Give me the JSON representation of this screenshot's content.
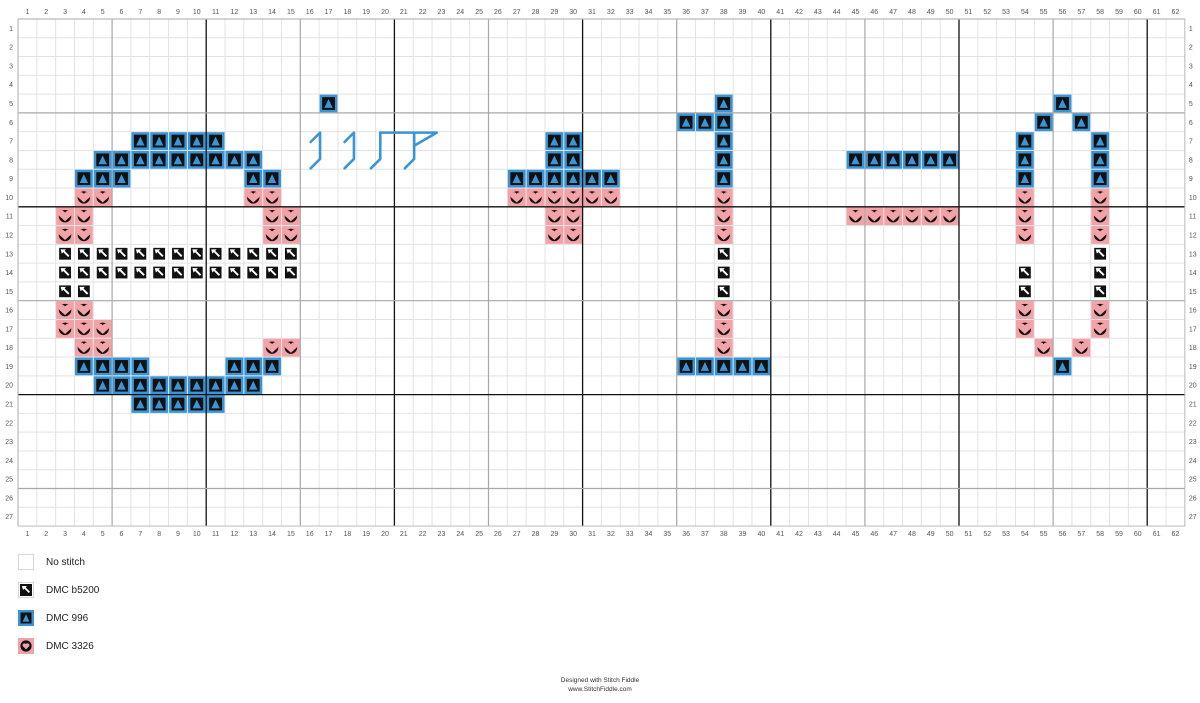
{
  "chart_data": {
    "type": "cross-stitch-pattern",
    "columns": 62,
    "rows": 27,
    "column_numbers_top": true,
    "column_numbers_bottom": true,
    "row_numbers_left": true,
    "row_numbers_right": true,
    "major_gridline_every": 10,
    "symbols": {
      "B": {
        "name": "DMC 996",
        "fill": "#3a95d7",
        "symbol": "triangle"
      },
      "P": {
        "name": "DMC 3326",
        "fill": "#f2a3a8",
        "symbol": "heart"
      },
      "K": {
        "name": "DMC b5200",
        "fill": "#ffffff",
        "symbol": "arrow"
      }
    },
    "stitches": {
      "B": [
        [
          17,
          5
        ],
        [
          38,
          5
        ],
        [
          56,
          5
        ],
        [
          36,
          6
        ],
        [
          37,
          6
        ],
        [
          38,
          6
        ],
        [
          55,
          6
        ],
        [
          57,
          6
        ],
        [
          7,
          7
        ],
        [
          8,
          7
        ],
        [
          9,
          7
        ],
        [
          10,
          7
        ],
        [
          11,
          7
        ],
        [
          29,
          7
        ],
        [
          30,
          7
        ],
        [
          38,
          7
        ],
        [
          54,
          7
        ],
        [
          58,
          7
        ],
        [
          5,
          8
        ],
        [
          6,
          8
        ],
        [
          7,
          8
        ],
        [
          8,
          8
        ],
        [
          9,
          8
        ],
        [
          10,
          8
        ],
        [
          11,
          8
        ],
        [
          12,
          8
        ],
        [
          13,
          8
        ],
        [
          29,
          8
        ],
        [
          30,
          8
        ],
        [
          38,
          8
        ],
        [
          45,
          8
        ],
        [
          46,
          8
        ],
        [
          47,
          8
        ],
        [
          48,
          8
        ],
        [
          49,
          8
        ],
        [
          50,
          8
        ],
        [
          54,
          8
        ],
        [
          58,
          8
        ],
        [
          4,
          9
        ],
        [
          5,
          9
        ],
        [
          6,
          9
        ],
        [
          13,
          9
        ],
        [
          14,
          9
        ],
        [
          27,
          9
        ],
        [
          28,
          9
        ],
        [
          29,
          9
        ],
        [
          30,
          9
        ],
        [
          31,
          9
        ],
        [
          32,
          9
        ],
        [
          38,
          9
        ],
        [
          54,
          9
        ],
        [
          58,
          9
        ],
        [
          4,
          19
        ],
        [
          5,
          19
        ],
        [
          6,
          19
        ],
        [
          7,
          19
        ],
        [
          12,
          19
        ],
        [
          13,
          19
        ],
        [
          14,
          19
        ],
        [
          36,
          19
        ],
        [
          37,
          19
        ],
        [
          38,
          19
        ],
        [
          39,
          19
        ],
        [
          40,
          19
        ],
        [
          56,
          19
        ],
        [
          5,
          20
        ],
        [
          6,
          20
        ],
        [
          7,
          20
        ],
        [
          8,
          20
        ],
        [
          9,
          20
        ],
        [
          10,
          20
        ],
        [
          11,
          20
        ],
        [
          12,
          20
        ],
        [
          13,
          20
        ],
        [
          7,
          21
        ],
        [
          8,
          21
        ],
        [
          9,
          21
        ],
        [
          10,
          21
        ],
        [
          11,
          21
        ]
      ],
      "P": [
        [
          4,
          10
        ],
        [
          5,
          10
        ],
        [
          13,
          10
        ],
        [
          14,
          10
        ],
        [
          27,
          10
        ],
        [
          28,
          10
        ],
        [
          29,
          10
        ],
        [
          30,
          10
        ],
        [
          31,
          10
        ],
        [
          32,
          10
        ],
        [
          38,
          10
        ],
        [
          54,
          10
        ],
        [
          58,
          10
        ],
        [
          3,
          11
        ],
        [
          4,
          11
        ],
        [
          14,
          11
        ],
        [
          15,
          11
        ],
        [
          29,
          11
        ],
        [
          30,
          11
        ],
        [
          38,
          11
        ],
        [
          45,
          11
        ],
        [
          46,
          11
        ],
        [
          47,
          11
        ],
        [
          48,
          11
        ],
        [
          49,
          11
        ],
        [
          50,
          11
        ],
        [
          54,
          11
        ],
        [
          58,
          11
        ],
        [
          3,
          12
        ],
        [
          4,
          12
        ],
        [
          14,
          12
        ],
        [
          15,
          12
        ],
        [
          29,
          12
        ],
        [
          30,
          12
        ],
        [
          38,
          12
        ],
        [
          54,
          12
        ],
        [
          58,
          12
        ],
        [
          3,
          16
        ],
        [
          4,
          16
        ],
        [
          38,
          16
        ],
        [
          54,
          16
        ],
        [
          58,
          16
        ],
        [
          3,
          17
        ],
        [
          4,
          17
        ],
        [
          5,
          17
        ],
        [
          38,
          17
        ],
        [
          54,
          17
        ],
        [
          58,
          17
        ],
        [
          4,
          18
        ],
        [
          5,
          18
        ],
        [
          14,
          18
        ],
        [
          15,
          18
        ],
        [
          38,
          18
        ],
        [
          55,
          18
        ],
        [
          57,
          18
        ]
      ],
      "K": [
        [
          3,
          13
        ],
        [
          4,
          13
        ],
        [
          5,
          13
        ],
        [
          6,
          13
        ],
        [
          7,
          13
        ],
        [
          8,
          13
        ],
        [
          9,
          13
        ],
        [
          10,
          13
        ],
        [
          11,
          13
        ],
        [
          12,
          13
        ],
        [
          13,
          13
        ],
        [
          14,
          13
        ],
        [
          15,
          13
        ],
        [
          38,
          13
        ],
        [
          58,
          13
        ],
        [
          3,
          14
        ],
        [
          4,
          14
        ],
        [
          5,
          14
        ],
        [
          6,
          14
        ],
        [
          7,
          14
        ],
        [
          8,
          14
        ],
        [
          9,
          14
        ],
        [
          10,
          14
        ],
        [
          11,
          14
        ],
        [
          12,
          14
        ],
        [
          13,
          14
        ],
        [
          14,
          14
        ],
        [
          15,
          14
        ],
        [
          38,
          14
        ],
        [
          54,
          14
        ],
        [
          58,
          14
        ],
        [
          3,
          15
        ],
        [
          4,
          15
        ],
        [
          38,
          15
        ],
        [
          54,
          15
        ],
        [
          58,
          15
        ]
      ]
    },
    "backstitch_color": "#3a95d7",
    "backstitch": [
      [
        [
          16.55,
          7.55
        ],
        [
          17.05,
          7.05
        ],
        [
          17.05,
          8.45
        ],
        [
          16.55,
          8.95
        ]
      ],
      [
        [
          18.35,
          7.55
        ],
        [
          18.85,
          7.05
        ],
        [
          18.85,
          8.45
        ],
        [
          18.35,
          8.95
        ]
      ],
      [
        [
          20.25,
          7.05
        ],
        [
          23.25,
          7.05
        ],
        [
          22.05,
          7.75
        ]
      ],
      [
        [
          20.25,
          7.05
        ],
        [
          20.25,
          8.45
        ],
        [
          19.75,
          8.95
        ]
      ],
      [
        [
          22.05,
          7.05
        ],
        [
          22.05,
          8.45
        ],
        [
          21.55,
          8.95
        ]
      ]
    ]
  },
  "legend": [
    {
      "label": "No stitch"
    },
    {
      "label": "DMC b5200"
    },
    {
      "label": "DMC 996"
    },
    {
      "label": "DMC 3326"
    }
  ],
  "footer": {
    "line1": "Designed with Stitch Fiddle",
    "line2": "www.StitchFiddle.com"
  }
}
